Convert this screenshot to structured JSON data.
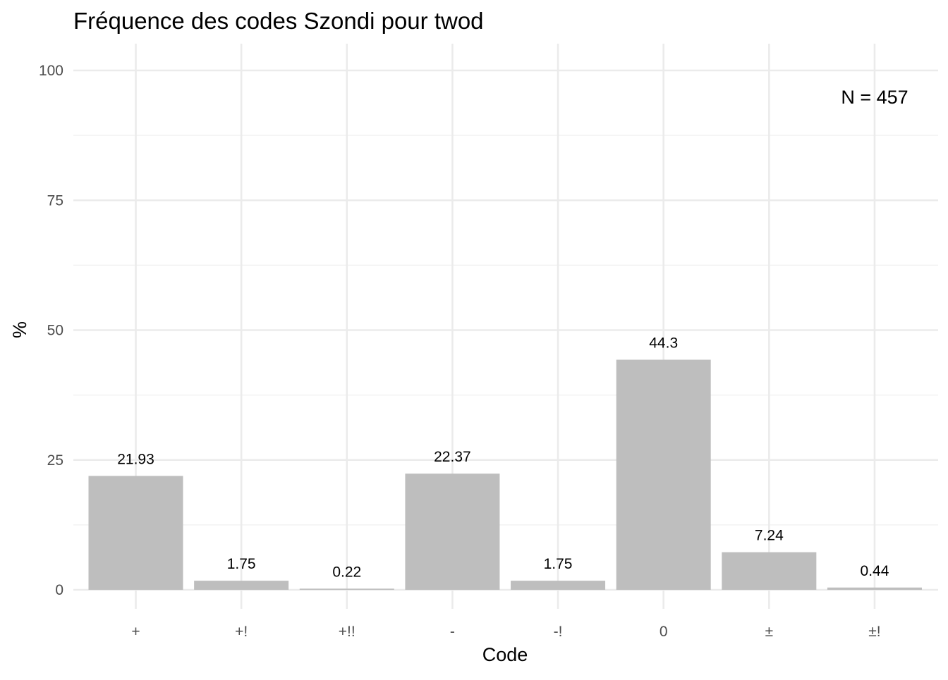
{
  "chart_data": {
    "type": "bar",
    "title": "Fréquence des codes Szondi pour twod",
    "xlabel": "Code",
    "ylabel": "%",
    "categories": [
      "+",
      "+!",
      "+!!",
      "-",
      "-!",
      "0",
      "±",
      "±!"
    ],
    "values": [
      21.93,
      1.75,
      0.22,
      22.37,
      1.75,
      44.3,
      7.24,
      0.44
    ],
    "data_labels": [
      "21.93",
      "1.75",
      "0.22",
      "22.37",
      "1.75",
      "44.3",
      "7.24",
      "0.44"
    ],
    "ylim": [
      0,
      100
    ],
    "yticks": [
      0,
      25,
      50,
      75,
      100
    ],
    "ytick_labels": [
      "0",
      "25",
      "50",
      "75",
      "100"
    ],
    "annotation": "N = 457",
    "annotation_position": "top-right",
    "grid": true,
    "legend": "none",
    "bar_color": "#bebebe"
  }
}
